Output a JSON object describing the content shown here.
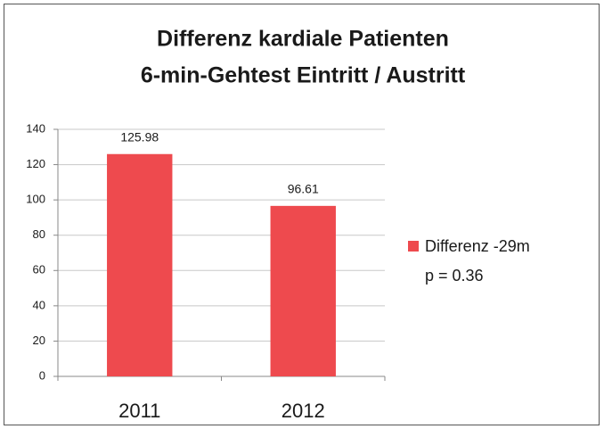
{
  "chart_data": {
    "type": "bar",
    "title": [
      "Differenz kardiale Patienten",
      "6-min-Gehtest Eintritt / Austritt"
    ],
    "categories": [
      "2011",
      "2012"
    ],
    "series": [
      {
        "name": "Differenz -29m",
        "color": "#ee4a4e",
        "values": [
          125.98,
          96.61
        ]
      }
    ],
    "legend_note": "p = 0.36",
    "legend": "right",
    "ylim": [
      0,
      140
    ],
    "yticks": [
      0,
      20,
      40,
      60,
      80,
      100,
      120,
      140
    ],
    "grid": true
  }
}
